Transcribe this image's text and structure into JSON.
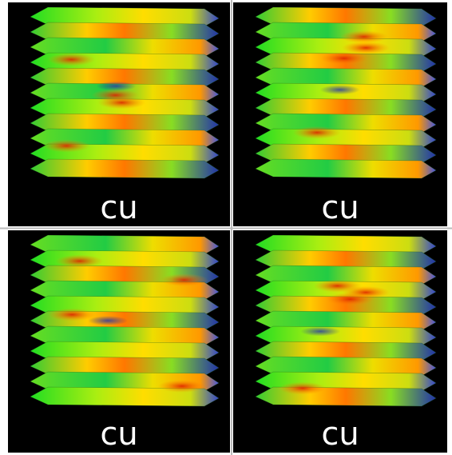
{
  "panels": [
    {
      "label": "cu"
    },
    {
      "label": "cu"
    },
    {
      "label": "cu"
    },
    {
      "label": "cu"
    }
  ]
}
